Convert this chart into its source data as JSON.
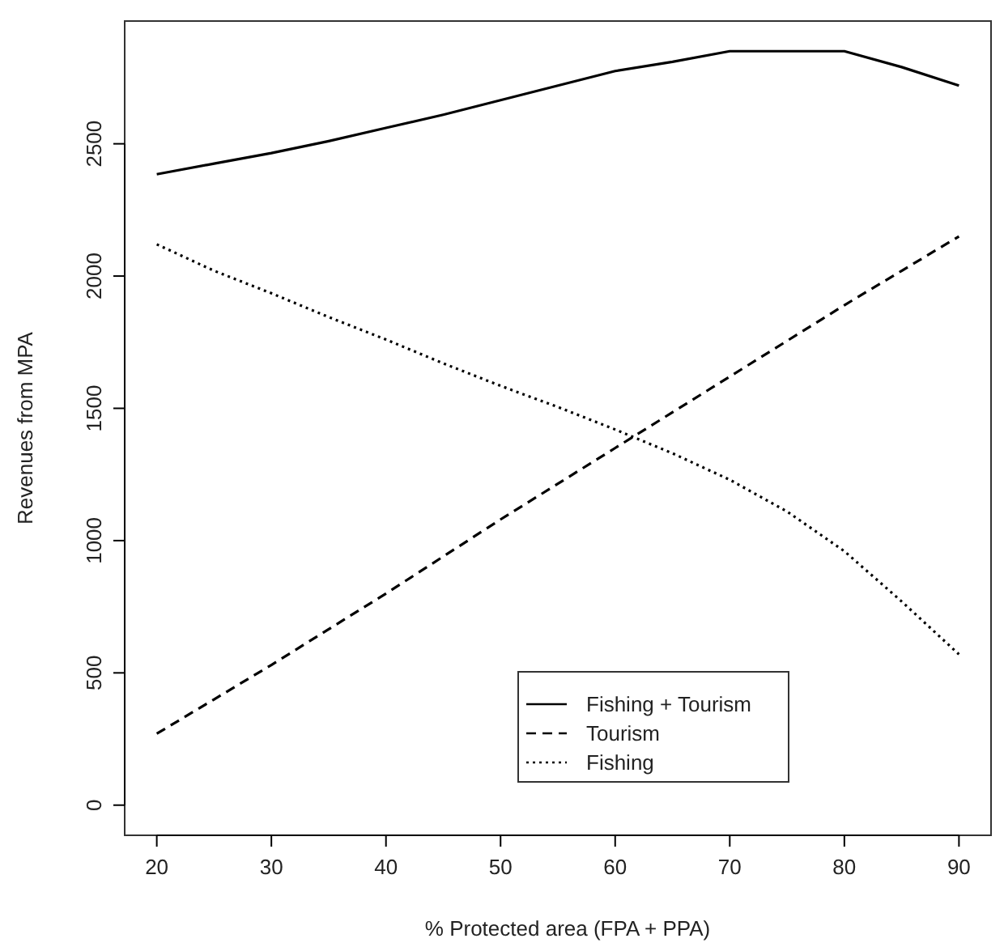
{
  "chart_data": {
    "type": "line",
    "xlabel": "% Protected area (FPA + PPA)",
    "ylabel": "Revenues from MPA",
    "x": [
      20,
      25,
      30,
      35,
      40,
      45,
      50,
      55,
      60,
      65,
      70,
      75,
      80,
      85,
      90
    ],
    "series": [
      {
        "name": "Fishing + Tourism",
        "color": "#000000",
        "line_style": "solid",
        "values": [
          2385,
          2425,
          2465,
          2510,
          2560,
          2610,
          2665,
          2720,
          2775,
          2810,
          2850,
          2850,
          2850,
          2790,
          2720
        ]
      },
      {
        "name": "Tourism",
        "color": "#000000",
        "line_style": "dashed",
        "values": [
          270,
          400,
          530,
          665,
          800,
          940,
          1080,
          1215,
          1350,
          1485,
          1620,
          1755,
          1890,
          2020,
          2150
        ]
      },
      {
        "name": "Fishing",
        "color": "#000000",
        "line_style": "dotted",
        "values": [
          2120,
          2020,
          1935,
          1845,
          1760,
          1670,
          1585,
          1505,
          1420,
          1330,
          1230,
          1110,
          960,
          770,
          570
        ]
      }
    ],
    "xlim": [
      17.2,
      92.8
    ],
    "ylim": [
      -114,
      2964
    ],
    "xticks": [
      20,
      30,
      40,
      50,
      60,
      70,
      80,
      90
    ],
    "yticks": [
      0,
      500,
      1000,
      1500,
      2000,
      2500
    ],
    "grid": false,
    "legend": "bottom",
    "marker": "none"
  }
}
